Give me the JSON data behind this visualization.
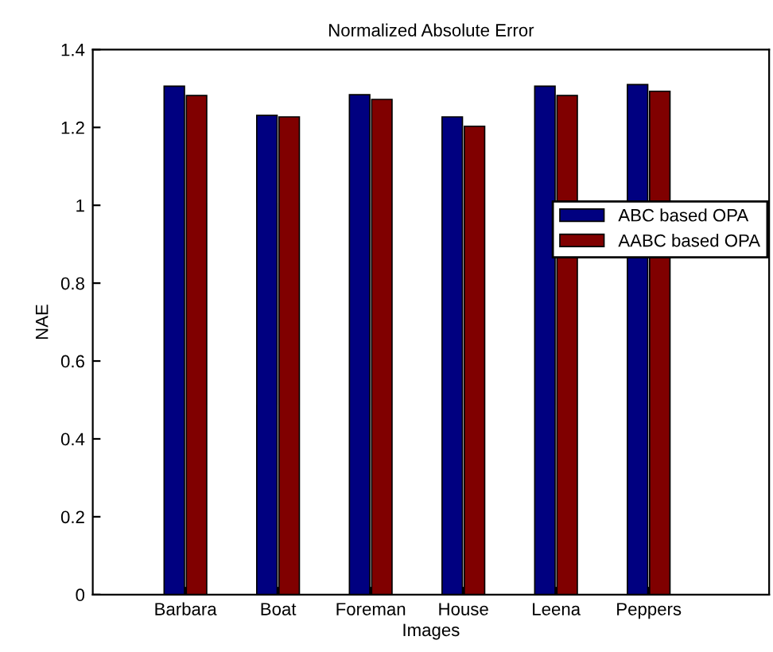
{
  "chart_data": {
    "type": "bar",
    "title": "Normalized Absolute Error",
    "xlabel": "Images",
    "ylabel": "NAE",
    "categories": [
      "Barbara",
      "Boat",
      "Foreman",
      "House",
      "Leena",
      "Peppers"
    ],
    "series": [
      {
        "name": "ABC based OPA",
        "color": "#000080",
        "values": [
          1.306,
          1.231,
          1.284,
          1.227,
          1.306,
          1.31
        ]
      },
      {
        "name": "AABC based OPA",
        "color": "#800000",
        "values": [
          1.282,
          1.227,
          1.272,
          1.203,
          1.282,
          1.293
        ]
      }
    ],
    "ylim": [
      0,
      1.4
    ],
    "yticks": [
      0,
      0.2,
      0.4,
      0.6,
      0.8,
      1,
      1.2,
      1.4
    ],
    "legend": "right",
    "grid": false
  }
}
